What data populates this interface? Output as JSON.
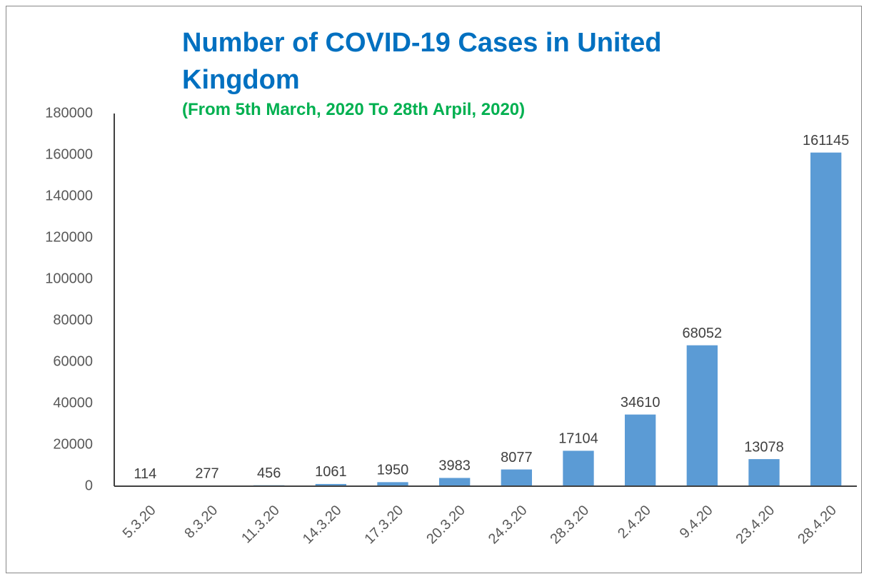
{
  "chart_data": {
    "type": "bar",
    "title": "Number of COVID-19 Cases in United Kingdom",
    "subtitle": "(From 5th March, 2020 To 28th Arpil, 2020)",
    "categories": [
      "5.3.20",
      "8.3.20",
      "11.3.20",
      "14.3.20",
      "17.3.20",
      "20.3.20",
      "24.3.20",
      "28.3.20",
      "2.4.20",
      "9.4.20",
      "23.4.20",
      "28.4.20"
    ],
    "values": [
      114,
      277,
      456,
      1061,
      1950,
      3983,
      8077,
      17104,
      34610,
      68052,
      13078,
      161145
    ],
    "color": "#5b9bd5",
    "ylim": [
      0,
      180000
    ],
    "yticks": [
      0,
      20000,
      40000,
      60000,
      80000,
      100000,
      120000,
      140000,
      160000,
      180000
    ],
    "grid": false
  }
}
